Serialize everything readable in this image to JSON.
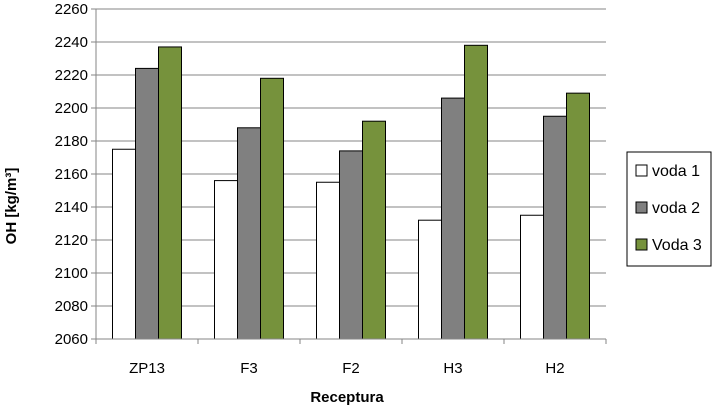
{
  "chart_data": {
    "type": "bar",
    "xlabel": "Receptura",
    "ylabel": "OH [kg/m³]",
    "ylim": [
      2060,
      2260
    ],
    "ytick_step": 20,
    "grid": true,
    "legend_position": "right",
    "categories": [
      "ZP13",
      "F3",
      "F2",
      "H3",
      "H2"
    ],
    "series": [
      {
        "name": "voda 1",
        "color": "#ffffff",
        "values": [
          2175,
          2156,
          2155,
          2132,
          2135
        ]
      },
      {
        "name": "voda 2",
        "color": "#808080",
        "values": [
          2224,
          2188,
          2174,
          2206,
          2195
        ]
      },
      {
        "name": "Voda 3",
        "color": "#76923c",
        "values": [
          2237,
          2218,
          2192,
          2238,
          2209
        ]
      }
    ]
  }
}
